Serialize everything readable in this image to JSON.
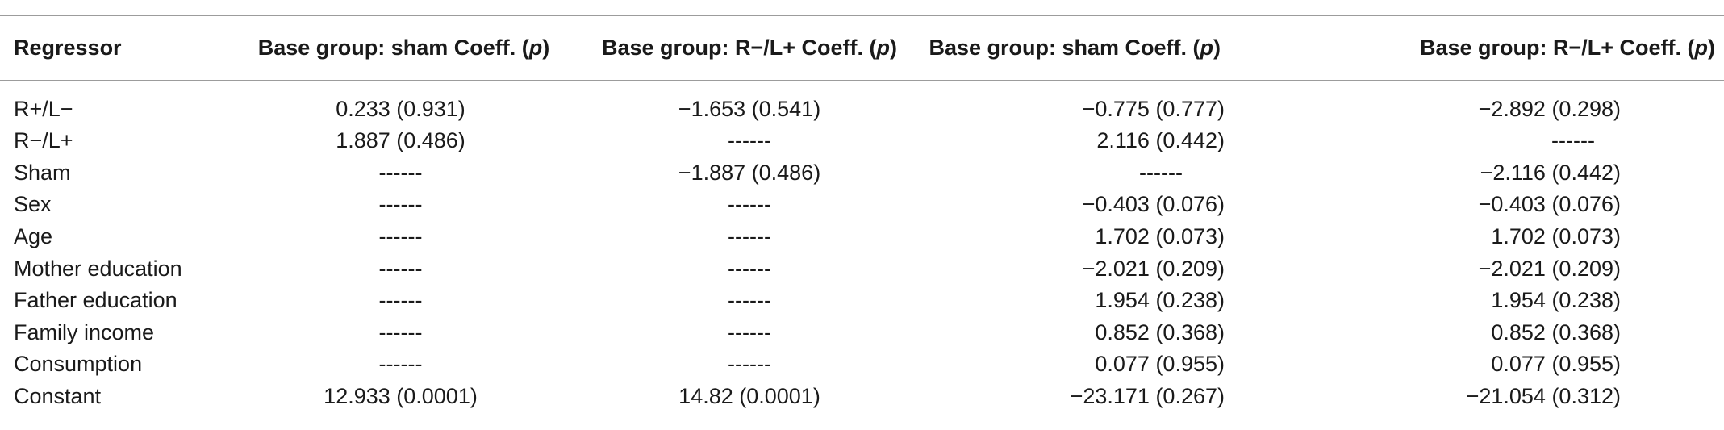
{
  "table": {
    "headers": [
      {
        "text": "Regressor",
        "p": ""
      },
      {
        "text": "Base group: sham Coeff. (",
        "p": "p",
        "close": ")"
      },
      {
        "text": "Base group: R−/L+ Coeff. (",
        "p": "p",
        "close": ")"
      },
      {
        "text": "Base group: sham Coeff. (",
        "p": "p",
        "close": ")"
      },
      {
        "text": "Base group: R−/L+ Coeff. (",
        "p": "p",
        "close": ")"
      }
    ],
    "rows": [
      {
        "regressor": "R+/L−",
        "v1": "0.233 (0.931)",
        "v2": "−1.653 (0.541)",
        "v3": "−0.775 (0.777)",
        "v4": "−2.892 (0.298)"
      },
      {
        "regressor": "R−/L+",
        "v1": "1.887 (0.486)",
        "v2": "------",
        "v3": "2.116 (0.442)",
        "v4": "------"
      },
      {
        "regressor": "Sham",
        "v1": "------",
        "v2": "−1.887 (0.486)",
        "v3": "------",
        "v4": "−2.116 (0.442)"
      },
      {
        "regressor": "Sex",
        "v1": "------",
        "v2": "------",
        "v3": "−0.403 (0.076)",
        "v4": "−0.403 (0.076)"
      },
      {
        "regressor": "Age",
        "v1": "------",
        "v2": "------",
        "v3": "1.702 (0.073)",
        "v4": "1.702 (0.073)"
      },
      {
        "regressor": "Mother education",
        "v1": "------",
        "v2": "------",
        "v3": "−2.021 (0.209)",
        "v4": "−2.021 (0.209)"
      },
      {
        "regressor": "Father education",
        "v1": "------",
        "v2": "------",
        "v3": "1.954 (0.238)",
        "v4": "1.954 (0.238)"
      },
      {
        "regressor": "Family income",
        "v1": "------",
        "v2": "------",
        "v3": "0.852 (0.368)",
        "v4": "0.852 (0.368)"
      },
      {
        "regressor": "Consumption",
        "v1": "------",
        "v2": "------",
        "v3": "0.077 (0.955)",
        "v4": "0.077 (0.955)"
      },
      {
        "regressor": "Constant",
        "v1": "12.933 (0.0001)",
        "v2": "14.82 (0.0001)",
        "v3": "−23.171 (0.267)",
        "v4": "−21.054 (0.312)"
      }
    ]
  }
}
